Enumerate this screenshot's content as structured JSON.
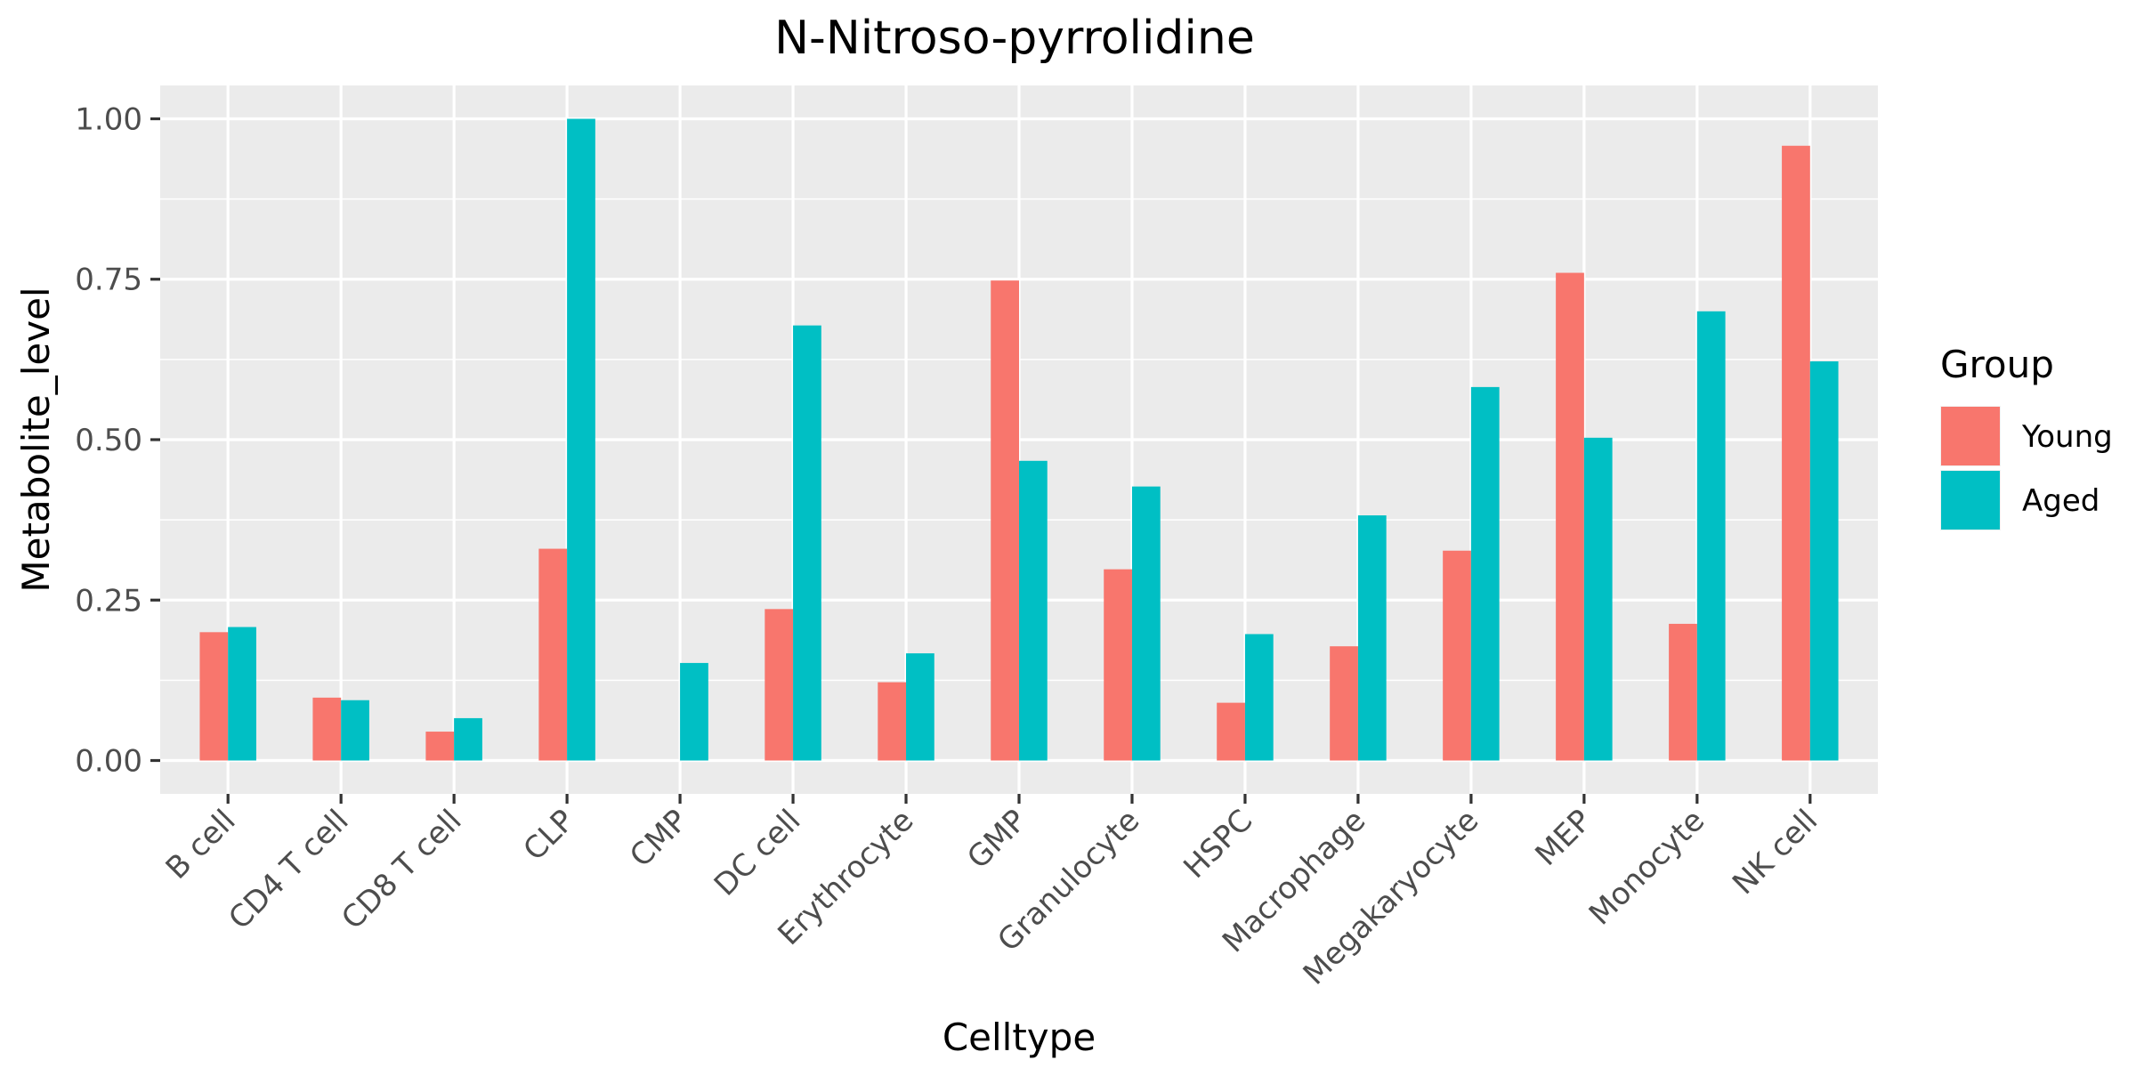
{
  "chart_data": {
    "type": "bar",
    "title": "N-Nitroso-pyrrolidine",
    "xlabel": "Celltype",
    "ylabel": "Metabolite_level",
    "categories": [
      "B cell",
      "CD4 T cell",
      "CD8 T cell",
      "CLP",
      "CMP",
      "DC cell",
      "Erythrocyte",
      "GMP",
      "Granulocyte",
      "HSPC",
      "Macrophage",
      "Megakaryocyte",
      "MEP",
      "Monocyte",
      "NK cell"
    ],
    "series": [
      {
        "name": "Young",
        "color": "#F8766D",
        "values": [
          0.2,
          0.098,
          0.045,
          0.33,
          0.0,
          0.236,
          0.122,
          0.748,
          0.298,
          0.09,
          0.178,
          0.327,
          0.76,
          0.213,
          0.958
        ]
      },
      {
        "name": "Aged",
        "color": "#00BFC4",
        "values": [
          0.208,
          0.094,
          0.066,
          1.0,
          0.152,
          0.678,
          0.167,
          0.467,
          0.427,
          0.197,
          0.382,
          0.582,
          0.503,
          0.7,
          0.622
        ]
      }
    ],
    "ylim": [
      -0.052,
      1.052
    ],
    "yticks": [
      0,
      0.25,
      0.5,
      0.75,
      1.0
    ],
    "ytick_labels": [
      "0.00",
      "0.25",
      "0.50",
      "0.75",
      "1.00"
    ],
    "legend": {
      "title": "Group",
      "position": "right"
    },
    "grid": true,
    "panel_background": "#EBEBEB"
  }
}
